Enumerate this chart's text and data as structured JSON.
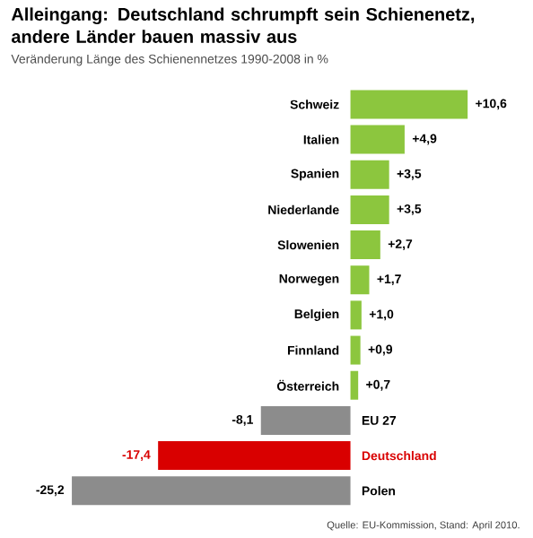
{
  "chart_data": {
    "type": "bar",
    "orientation": "horizontal",
    "title": "Alleingang: Deutschland schrumpft sein Schienenetz, andere Länder bauen massiv aus",
    "subtitle": "Veränderung Länge des Schienennetzes 1990-2008 in %",
    "categories": [
      "Schweiz",
      "Italien",
      "Spanien",
      "Niederlande",
      "Slowenien",
      "Norwegen",
      "Belgien",
      "Finnland",
      "Österreich",
      "EU 27",
      "Deutschland",
      "Polen"
    ],
    "values": [
      10.6,
      4.9,
      3.5,
      3.5,
      2.7,
      1.7,
      1.0,
      0.9,
      0.7,
      -8.1,
      -17.4,
      -25.2
    ],
    "value_labels": [
      "+10,6",
      "+4,9",
      "+3,5",
      "+3,5",
      "+2,7",
      "+1,7",
      "+1,0",
      "+0,9",
      "+0,7",
      "-8,1",
      "-17,4",
      "-25,2"
    ],
    "colors": [
      "#8cc63e",
      "#8cc63e",
      "#8cc63e",
      "#8cc63e",
      "#8cc63e",
      "#8cc63e",
      "#8cc63e",
      "#8cc63e",
      "#8cc63e",
      "#8c8c8c",
      "#d90000",
      "#8c8c8c"
    ],
    "annotations": [
      "Quelle: EU-Kommission, Stand: April 2010."
    ]
  }
}
